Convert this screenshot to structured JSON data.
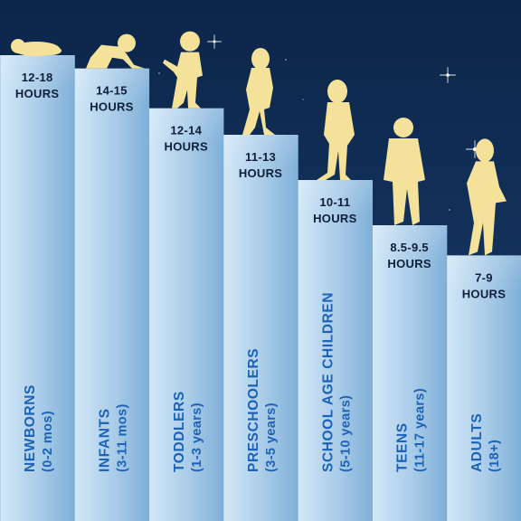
{
  "chart_data": {
    "type": "bar",
    "categories": [
      {
        "name": "NEWBORNS",
        "age": "(0-2 mos)"
      },
      {
        "name": "INFANTS",
        "age": "(3-11 mos)"
      },
      {
        "name": "TODDLERS",
        "age": "(1-3 years)"
      },
      {
        "name": "PRESCHOOLERS",
        "age": "(3-5 years)"
      },
      {
        "name": "SCHOOL AGE CHILDREN",
        "age": "(5-10 years)"
      },
      {
        "name": "TEENS",
        "age": "(11-17 years)"
      },
      {
        "name": "ADULTS",
        "age": "(18+)"
      }
    ],
    "data_labels": [
      {
        "range": "12-18",
        "unit": "HOURS"
      },
      {
        "range": "14-15",
        "unit": "HOURS"
      },
      {
        "range": "12-14",
        "unit": "HOURS"
      },
      {
        "range": "11-13",
        "unit": "HOURS"
      },
      {
        "range": "10-11",
        "unit": "HOURS"
      },
      {
        "range": "8.5-9.5",
        "unit": "HOURS"
      },
      {
        "range": "7-9",
        "unit": "HOURS"
      }
    ],
    "values": [
      15,
      14.5,
      13,
      12,
      10.5,
      9,
      8
    ],
    "ylim": [
      0,
      18
    ],
    "grid": false,
    "legend": "none",
    "colors": {
      "background_top": "#0c2649",
      "background_bottom": "#1a3d6e",
      "bar_light": "#d3e8f7",
      "bar_mid": "#a8cbe8",
      "bar_dark": "#7eafd8",
      "label_dark": "#0e1e38",
      "category_text": "#1c63b8",
      "silhouette": "#f4e29a",
      "star": "#ffffff"
    }
  }
}
